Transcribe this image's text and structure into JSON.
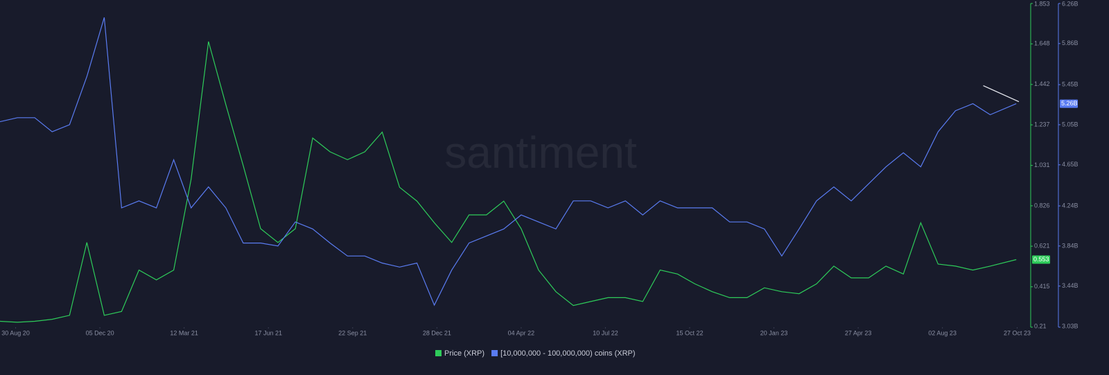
{
  "chart_data": {
    "type": "line",
    "watermark": "santiment",
    "x": [
      "2020-08-12",
      "2020-09-01",
      "2020-09-21",
      "2020-10-11",
      "2020-10-31",
      "2020-11-20",
      "2020-12-10",
      "2020-12-30",
      "2021-01-19",
      "2021-02-08",
      "2021-02-28",
      "2021-03-20",
      "2021-04-09",
      "2021-04-29",
      "2021-05-19",
      "2021-06-08",
      "2021-06-28",
      "2021-07-18",
      "2021-08-07",
      "2021-08-27",
      "2021-09-16",
      "2021-10-06",
      "2021-10-26",
      "2021-11-15",
      "2021-12-05",
      "2021-12-25",
      "2022-01-14",
      "2022-02-03",
      "2022-02-23",
      "2022-03-15",
      "2022-04-04",
      "2022-04-24",
      "2022-05-14",
      "2022-06-03",
      "2022-06-23",
      "2022-07-13",
      "2022-08-02",
      "2022-08-22",
      "2022-09-11",
      "2022-10-01",
      "2022-10-21",
      "2022-11-10",
      "2022-11-30",
      "2022-12-20",
      "2023-01-09",
      "2023-01-29",
      "2023-02-18",
      "2023-03-10",
      "2023-03-30",
      "2023-04-19",
      "2023-05-09",
      "2023-05-29",
      "2023-06-18",
      "2023-07-08",
      "2023-07-28",
      "2023-08-17",
      "2023-09-06",
      "2023-09-26",
      "2023-10-26"
    ],
    "xlim": [
      "2020-08-12",
      "2023-11-06"
    ],
    "xticks": [
      {
        "value": "2020-08-30",
        "label": "30 Aug 20"
      },
      {
        "value": "2020-12-05",
        "label": "05 Dec 20"
      },
      {
        "value": "2021-03-12",
        "label": "12 Mar 21"
      },
      {
        "value": "2021-06-17",
        "label": "17 Jun 21"
      },
      {
        "value": "2021-09-22",
        "label": "22 Sep 21"
      },
      {
        "value": "2021-12-28",
        "label": "28 Dec 21"
      },
      {
        "value": "2022-04-04",
        "label": "04 Apr 22"
      },
      {
        "value": "2022-07-10",
        "label": "10 Jul 22"
      },
      {
        "value": "2022-10-15",
        "label": "15 Oct 22"
      },
      {
        "value": "2023-01-20",
        "label": "20 Jan 23"
      },
      {
        "value": "2023-04-27",
        "label": "27 Apr 23"
      },
      {
        "value": "2023-08-02",
        "label": "02 Aug 23"
      },
      {
        "value": "2023-10-27",
        "label": "27 Oct 23"
      }
    ],
    "ylim": [
      0.21,
      1.853
    ],
    "yticks": [
      0.21,
      0.415,
      0.621,
      0.826,
      1.031,
      1.237,
      1.442,
      1.648,
      1.853
    ],
    "y2lim": [
      3.03,
      6.26
    ],
    "y2ticks": [
      {
        "value": 3.03,
        "label": "3.03B"
      },
      {
        "value": 3.44,
        "label": "3.44B"
      },
      {
        "value": 3.84,
        "label": "3.84B"
      },
      {
        "value": 4.24,
        "label": "4.24B"
      },
      {
        "value": 4.65,
        "label": "4.65B"
      },
      {
        "value": 5.05,
        "label": "5.05B"
      },
      {
        "value": 5.45,
        "label": "5.45B"
      },
      {
        "value": 5.86,
        "label": "5.86B"
      },
      {
        "value": 6.26,
        "label": "6.26B"
      }
    ],
    "series": [
      {
        "name": "Price (XRP)",
        "color": "#2ecc5a",
        "axis": "y",
        "current": {
          "value": 0.553,
          "label": "0.553"
        },
        "values": [
          0.24,
          0.235,
          0.24,
          0.25,
          0.27,
          0.64,
          0.27,
          0.29,
          0.5,
          0.45,
          0.5,
          0.96,
          1.66,
          1.34,
          1.03,
          0.71,
          0.64,
          0.71,
          1.17,
          1.1,
          1.06,
          1.1,
          1.2,
          0.92,
          0.85,
          0.74,
          0.64,
          0.78,
          0.78,
          0.85,
          0.71,
          0.5,
          0.39,
          0.32,
          0.34,
          0.36,
          0.36,
          0.34,
          0.5,
          0.48,
          0.43,
          0.39,
          0.36,
          0.36,
          0.41,
          0.39,
          0.38,
          0.43,
          0.52,
          0.46,
          0.46,
          0.52,
          0.48,
          0.74,
          0.53,
          0.52,
          0.5,
          0.52,
          0.553
        ]
      },
      {
        "name": "[10,000,000 - 100,000,000) coins (XRP)",
        "color": "#5a7cf2",
        "axis": "y2",
        "current": {
          "value": 5.26,
          "label": "5.26B"
        },
        "values": [
          5.08,
          5.12,
          5.12,
          4.98,
          5.05,
          5.53,
          6.12,
          4.22,
          4.29,
          4.22,
          4.7,
          4.22,
          4.43,
          4.22,
          3.87,
          3.87,
          3.84,
          4.08,
          4.01,
          3.87,
          3.74,
          3.74,
          3.67,
          3.63,
          3.67,
          3.25,
          3.6,
          3.87,
          3.94,
          4.01,
          4.15,
          4.08,
          4.01,
          4.29,
          4.29,
          4.22,
          4.29,
          4.15,
          4.29,
          4.22,
          4.22,
          4.22,
          4.08,
          4.08,
          4.01,
          3.74,
          4.01,
          4.29,
          4.43,
          4.29,
          4.46,
          4.63,
          4.77,
          4.63,
          4.98,
          5.19,
          5.26,
          5.15,
          5.26
        ]
      }
    ],
    "trendline": {
      "x": [
        "2023-09-18",
        "2023-10-29"
      ],
      "values": [
        5.44,
        5.28
      ],
      "axis": "y2",
      "color": "#e6e8ef"
    }
  }
}
